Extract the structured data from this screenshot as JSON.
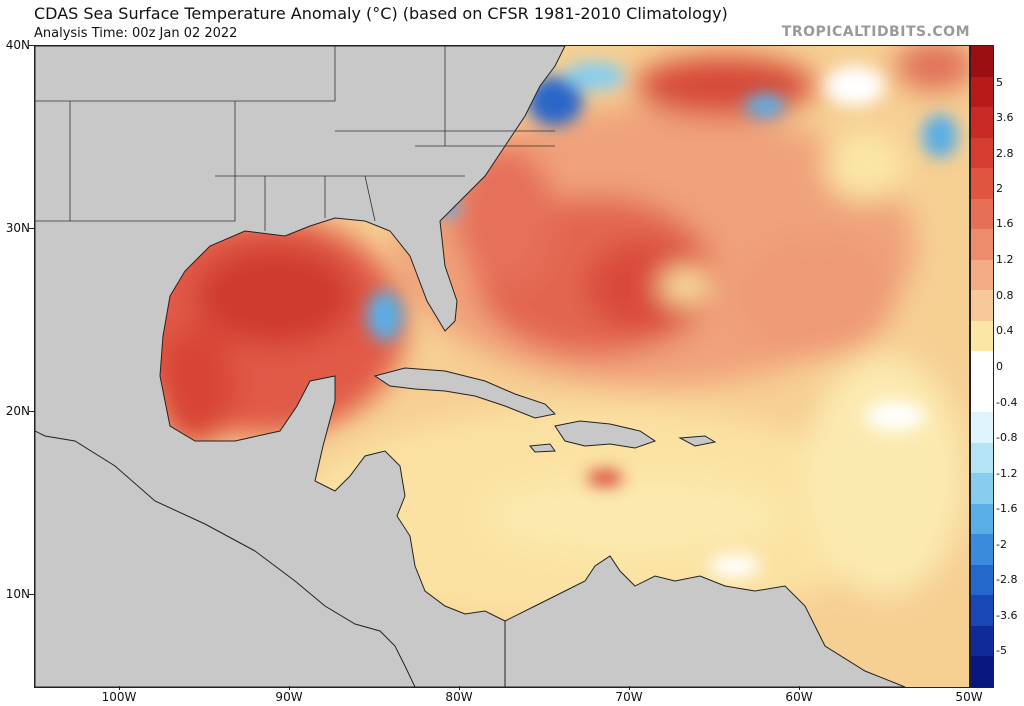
{
  "header": {
    "title": "CDAS Sea Surface Temperature Anomaly (°C) (based on CFSR 1981-2010 Climatology)",
    "analysis_time": "Analysis Time: 00z Jan 02 2022",
    "watermark": "TROPICALTIDBITS.COM"
  },
  "map": {
    "region": "Gulf of Mexico, Caribbean Sea and western North Atlantic",
    "lat_labels": [
      "40N",
      "30N",
      "20N",
      "10N"
    ],
    "lon_labels": [
      "100W",
      "90W",
      "80W",
      "70W",
      "60W",
      "50W"
    ],
    "lat_range": [
      5,
      40
    ],
    "lon_range": [
      -105,
      -50
    ]
  },
  "colorbar": {
    "labels": [
      "5",
      "3.6",
      "2.8",
      "2",
      "1.6",
      "1.2",
      "0.8",
      "0.4",
      "0",
      "-0.4",
      "-0.8",
      "-1.2",
      "-1.6",
      "-2",
      "-2.8",
      "-3.6",
      "-5"
    ],
    "colors": [
      "#9b0f13",
      "#b81a1a",
      "#c92a25",
      "#d63c30",
      "#df553f",
      "#e67055",
      "#ed8c6c",
      "#f3ac86",
      "#f7c99a",
      "#fbe6a6",
      "#ffffff",
      "#ffffff",
      "#dff4fb",
      "#b5e3f6",
      "#86cdef",
      "#5aaee6",
      "#3a8bdb",
      "#2468cc",
      "#1947b5",
      "#0f2a99",
      "#081780"
    ]
  },
  "colors": {
    "land": "#c8c8c8",
    "warm_strong": "#d63c30",
    "warm_mid": "#ed8c6c",
    "warm_light": "#f7c99a",
    "neutral": "#fbe6a6",
    "cool": "#86cdef",
    "cold": "#1947b5"
  }
}
